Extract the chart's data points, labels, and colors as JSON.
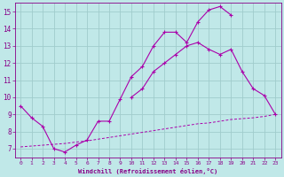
{
  "background_color": "#c0e8e8",
  "grid_color": "#a0cccc",
  "line_color": "#aa00aa",
  "xlim": [
    -0.5,
    23.5
  ],
  "ylim": [
    6.5,
    15.5
  ],
  "xtick_labels": [
    "0",
    "1",
    "2",
    "3",
    "4",
    "5",
    "6",
    "7",
    "8",
    "9",
    "10",
    "11",
    "12",
    "13",
    "14",
    "15",
    "16",
    "17",
    "18",
    "19",
    "20",
    "21",
    "22",
    "23"
  ],
  "xtick_vals": [
    0,
    1,
    2,
    3,
    4,
    5,
    6,
    7,
    8,
    9,
    10,
    11,
    12,
    13,
    14,
    15,
    16,
    17,
    18,
    19,
    20,
    21,
    22,
    23
  ],
  "ytick_vals": [
    7,
    8,
    9,
    10,
    11,
    12,
    13,
    14,
    15
  ],
  "ytick_labels": [
    "7",
    "8",
    "9",
    "10",
    "11",
    "12",
    "13",
    "14",
    "15"
  ],
  "xlabel": "Windchill (Refroidissement éolien,°C)",
  "line1_x": [
    0,
    1,
    2,
    3,
    4,
    5,
    6,
    7,
    8,
    9,
    10,
    11,
    12,
    13,
    14,
    15,
    16,
    17,
    18,
    19
  ],
  "line1_y": [
    9.5,
    8.8,
    8.3,
    7.0,
    6.8,
    7.2,
    7.5,
    8.6,
    8.6,
    9.9,
    11.2,
    11.8,
    13.0,
    13.8,
    13.8,
    13.2,
    14.4,
    15.1,
    15.3,
    14.8
  ],
  "line2_x": [
    10,
    11,
    12,
    13,
    14,
    15,
    16,
    17,
    18,
    19,
    20,
    21,
    22,
    23
  ],
  "line2_y": [
    10.0,
    10.5,
    11.5,
    12.0,
    12.5,
    13.0,
    13.2,
    12.8,
    12.5,
    12.8,
    11.5,
    10.5,
    10.1,
    9.0
  ],
  "line3_x": [
    0,
    1,
    2,
    3,
    4,
    5,
    6,
    7,
    8,
    9,
    10,
    11,
    12,
    13,
    14,
    15,
    16,
    17,
    18,
    19,
    20,
    21,
    22,
    23
  ],
  "line3_y": [
    7.1,
    7.15,
    7.2,
    7.25,
    7.3,
    7.38,
    7.45,
    7.55,
    7.65,
    7.75,
    7.85,
    7.95,
    8.05,
    8.15,
    8.25,
    8.35,
    8.45,
    8.5,
    8.6,
    8.7,
    8.75,
    8.8,
    8.88,
    9.0
  ]
}
